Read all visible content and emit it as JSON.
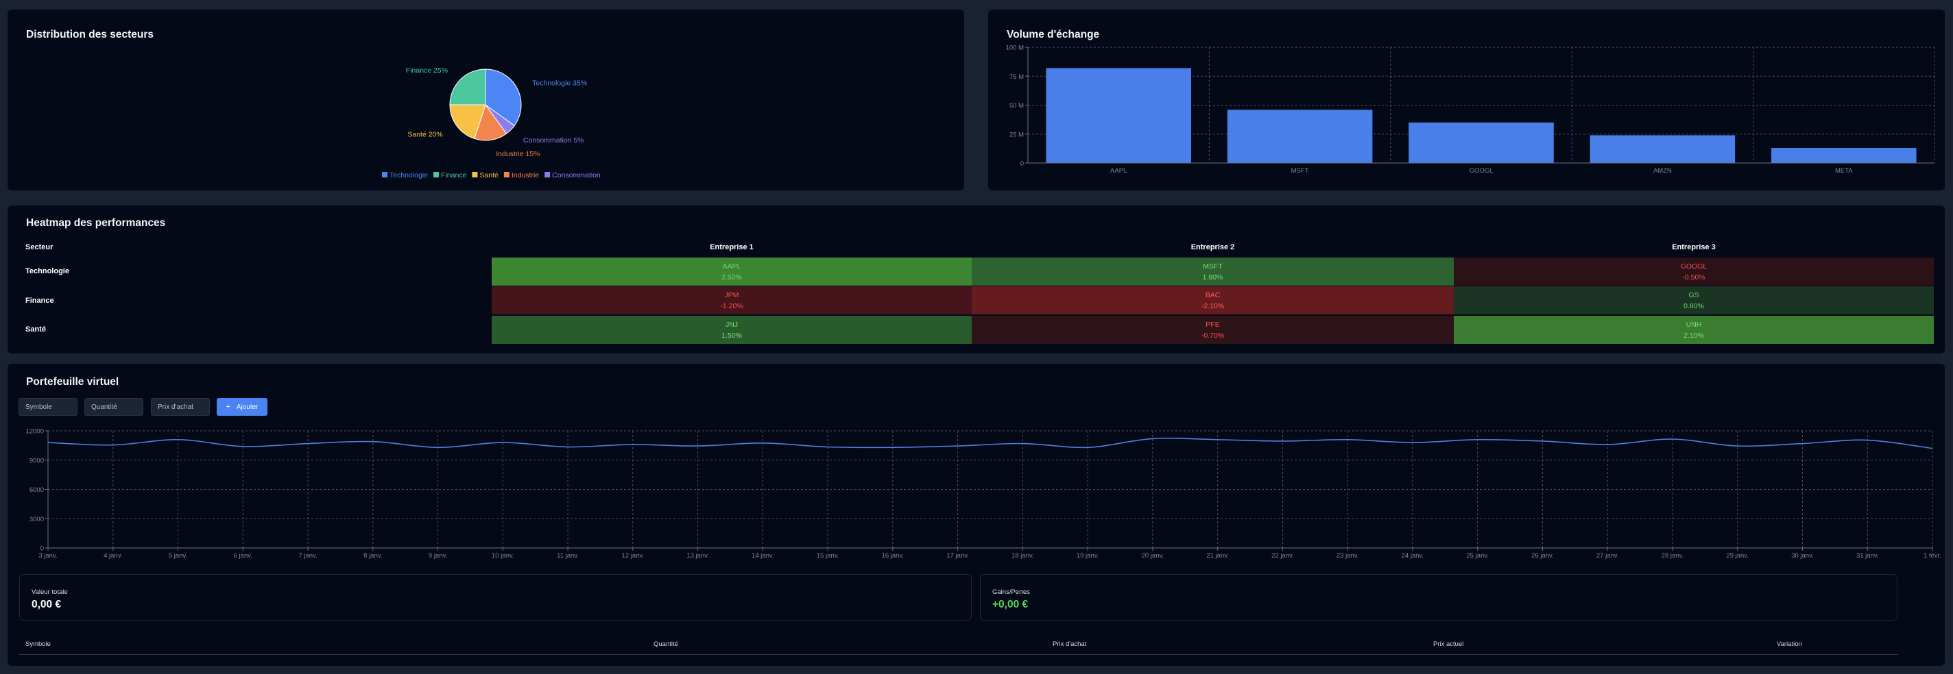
{
  "sector_panel": {
    "title": "Distribution des secteurs",
    "chart_data": {
      "type": "pie",
      "slices": [
        {
          "label": "Technologie 35%",
          "name": "Technologie",
          "value": 35,
          "color": "#4c86f4"
        },
        {
          "label": "Consommation 5%",
          "name": "Consommation",
          "value": 5,
          "color": "#8b7cf0"
        },
        {
          "label": "Industrie 15%",
          "name": "Industrie",
          "value": 15,
          "color": "#f2844d"
        },
        {
          "label": "Santé 20%",
          "name": "Santé",
          "value": 20,
          "color": "#f6c145"
        },
        {
          "label": "Finance 25%",
          "name": "Finance",
          "value": 25,
          "color": "#4cc69d"
        }
      ],
      "legend": [
        {
          "name": "Technologie",
          "color": "#4c86f4"
        },
        {
          "name": "Finance",
          "color": "#4cc69d"
        },
        {
          "name": "Santé",
          "color": "#f6c145"
        },
        {
          "name": "Industrie",
          "color": "#f2844d"
        },
        {
          "name": "Consommation",
          "color": "#8b7cf0"
        }
      ],
      "legend_position": "bottom"
    }
  },
  "volume_panel": {
    "title": "Volume d'échange",
    "chart_data": {
      "type": "bar",
      "categories": [
        "AAPL",
        "MSFT",
        "GOOGL",
        "AMZN",
        "META"
      ],
      "values": [
        82,
        46,
        35,
        24,
        13
      ],
      "ylim": [
        0,
        100
      ],
      "yticks": [
        "0",
        "25 M",
        "50 M",
        "75 M",
        "100 M"
      ],
      "color": "#4a7fe9",
      "grid": true
    }
  },
  "heatmap": {
    "title": "Heatmap des performances",
    "headers": [
      "Secteur",
      "Entreprise 1",
      "Entreprise 2",
      "Entreprise 3"
    ],
    "rows": [
      {
        "sector": "Technologie",
        "cells": [
          {
            "symbol": "AAPL",
            "change": "2.50%",
            "bg": "#3d8631",
            "fg": "#6fd36a"
          },
          {
            "symbol": "MSFT",
            "change": "1.80%",
            "bg": "#2d6330",
            "fg": "#7cde6e"
          },
          {
            "symbol": "GOOGL",
            "change": "-0.50%",
            "bg": "#2a1218",
            "fg": "#ff4f4f"
          }
        ]
      },
      {
        "sector": "Finance",
        "cells": [
          {
            "symbol": "JPM",
            "change": "-1.20%",
            "bg": "#45151b",
            "fg": "#ff4f4f"
          },
          {
            "symbol": "BAC",
            "change": "-2.10%",
            "bg": "#661c1f",
            "fg": "#ff5b5b"
          },
          {
            "symbol": "GS",
            "change": "0.80%",
            "bg": "#1b3524",
            "fg": "#6fd36a"
          }
        ]
      },
      {
        "sector": "Santé",
        "cells": [
          {
            "symbol": "JNJ",
            "change": "1.50%",
            "bg": "#295c2d",
            "fg": "#7cde6e"
          },
          {
            "symbol": "PFE",
            "change": "-0.70%",
            "bg": "#2e1419",
            "fg": "#ff4f4f"
          },
          {
            "symbol": "UNH",
            "change": "2.10%",
            "bg": "#3a7d30",
            "fg": "#7cde6e"
          }
        ]
      }
    ]
  },
  "portfolio": {
    "title": "Portefeuille virtuel",
    "symbol_placeholder": "Symbole",
    "quantity_placeholder": "Quantité",
    "price_placeholder": "Prix d'achat",
    "add_label": "Ajouter",
    "chart_data": {
      "type": "line",
      "x": [
        "3 janv.",
        "4 janv.",
        "5 janv.",
        "6 janv.",
        "7 janv.",
        "8 janv.",
        "9 janv.",
        "10 janv.",
        "11 janv.",
        "12 janv.",
        "13 janv.",
        "14 janv.",
        "15 janv.",
        "16 janv.",
        "17 janv.",
        "18 janv.",
        "19 janv.",
        "20 janv.",
        "21 janv.",
        "22 janv.",
        "23 janv.",
        "24 janv.",
        "25 janv.",
        "26 janv.",
        "27 janv.",
        "28 janv.",
        "29 janv.",
        "30 janv.",
        "31 janv.",
        "1 févr."
      ],
      "values": [
        10800,
        10550,
        11100,
        10400,
        10700,
        10900,
        10300,
        10800,
        10350,
        10600,
        10450,
        10750,
        10350,
        10300,
        10450,
        10700,
        10300,
        11200,
        11100,
        10950,
        11100,
        10800,
        11100,
        10950,
        10600,
        11150,
        10450,
        10700,
        11050,
        10200
      ],
      "ylim": [
        0,
        12000
      ],
      "yticks": [
        "0",
        "3000",
        "6000",
        "9000",
        "12000"
      ],
      "color": "#4e7fe0",
      "grid": true
    },
    "total_label": "Valeur totale",
    "total_value": "0,00 €",
    "gains_label": "Gains/Pertes",
    "gains_value": "+0,00 €",
    "gains_color": "#58d65f",
    "table_headers": [
      "Symbole",
      "Quantité",
      "Prix d'achat",
      "Prix actuel",
      "Variation"
    ]
  }
}
